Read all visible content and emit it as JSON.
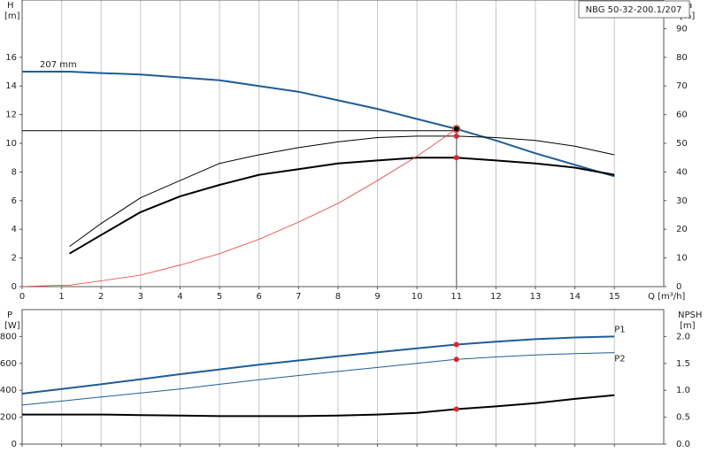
{
  "chart_data": [
    {
      "type": "line",
      "title": "NBG 50-32-200.1/207",
      "ylabel": "H",
      "yunit": "[m]",
      "y2label": "eta",
      "y2unit": "[%]",
      "xlabel": "Q [m³/h]",
      "x": [
        0,
        1,
        1.2,
        2,
        3,
        4,
        5,
        6,
        7,
        8,
        9,
        10,
        11,
        12,
        13,
        14,
        15
      ],
      "xlim": [
        0,
        16.25
      ],
      "xticks": [
        0,
        1,
        2,
        3,
        4,
        5,
        6,
        7,
        8,
        9,
        10,
        11,
        12,
        13,
        14,
        15
      ],
      "ylim": [
        0,
        20
      ],
      "yticks": [
        0,
        2,
        4,
        6,
        8,
        10,
        12,
        14,
        16
      ],
      "y2lim": [
        0,
        100
      ],
      "y2ticks": [
        0,
        10,
        20,
        30,
        40,
        50,
        60,
        70,
        80,
        90
      ],
      "grid": "x",
      "show_xtick_labels": true,
      "operating_x": 11,
      "series": [
        {
          "name": "207 mm",
          "color": "#1f5c99",
          "width": 2,
          "marker_color": "#f5c518",
          "values": [
            15.0,
            15.0,
            15.0,
            14.9,
            14.8,
            14.6,
            14.4,
            14.0,
            13.6,
            13.0,
            12.4,
            11.7,
            11.0,
            10.2,
            9.3,
            8.5,
            7.7
          ]
        },
        {
          "color": "#000000",
          "width": 1,
          "axis": "y2",
          "marker_color": "#e8202a",
          "values": [
            null,
            null,
            14,
            22,
            31,
            37,
            43,
            46,
            48.5,
            50.5,
            52,
            52.5,
            52.5,
            52,
            51,
            49,
            46
          ]
        },
        {
          "color": "#000000",
          "width": 2,
          "axis": "y2",
          "marker_color": "#e8202a",
          "values": [
            null,
            null,
            11.5,
            18,
            26,
            31.5,
            35.5,
            39,
            41,
            43,
            44,
            45,
            45,
            44,
            43,
            41.5,
            39
          ]
        },
        {
          "color": "#f03a3a",
          "width": 0.8,
          "values": [
            0,
            0.1,
            0.1,
            0.4,
            0.8,
            1.5,
            2.3,
            3.3,
            4.5,
            5.8,
            7.4,
            9.1,
            11.0,
            null,
            null,
            null,
            null
          ]
        }
      ]
    },
    {
      "type": "line",
      "ylabel": "P",
      "yunit": "[W]",
      "y2label": "NPSH",
      "y2unit": "[m]",
      "x": [
        0,
        1,
        2,
        3,
        4,
        5,
        6,
        7,
        8,
        9,
        10,
        11,
        12,
        13,
        14,
        15
      ],
      "xlim": [
        0,
        16.25
      ],
      "xticks": [
        0,
        1,
        2,
        3,
        4,
        5,
        6,
        7,
        8,
        9,
        10,
        11,
        12,
        13,
        14,
        15
      ],
      "ylim": [
        0,
        1000
      ],
      "yticks": [
        0,
        200,
        400,
        600,
        800
      ],
      "y2lim": [
        0,
        2.5
      ],
      "y2ticks": [
        {
          "value": 0,
          "label": "0.0"
        },
        0.5,
        {
          "value": 1,
          "label": "1.0"
        },
        1.5,
        {
          "value": 2,
          "label": "2.0"
        }
      ],
      "grid": "x",
      "show_xtick_labels": false,
      "operating_x": 11,
      "series": [
        {
          "name": "P1",
          "color": "#1f5c99",
          "width": 2,
          "marker_color": "#e8202a",
          "values": [
            375,
            410,
            445,
            482,
            520,
            555,
            590,
            622,
            653,
            682,
            712,
            740,
            762,
            780,
            793,
            800
          ]
        },
        {
          "name": "P2",
          "color": "#1f5c99",
          "width": 1,
          "marker_color": "#e8202a",
          "values": [
            290,
            320,
            350,
            380,
            410,
            445,
            478,
            510,
            540,
            570,
            600,
            630,
            648,
            663,
            673,
            680
          ]
        },
        {
          "color": "#000000",
          "width": 2,
          "axis": "y2",
          "marker_color": "#e8202a",
          "values": [
            0.55,
            0.55,
            0.55,
            0.54,
            0.53,
            0.52,
            0.52,
            0.52,
            0.53,
            0.55,
            0.58,
            0.65,
            0.7,
            0.76,
            0.84,
            0.91
          ]
        }
      ]
    }
  ]
}
